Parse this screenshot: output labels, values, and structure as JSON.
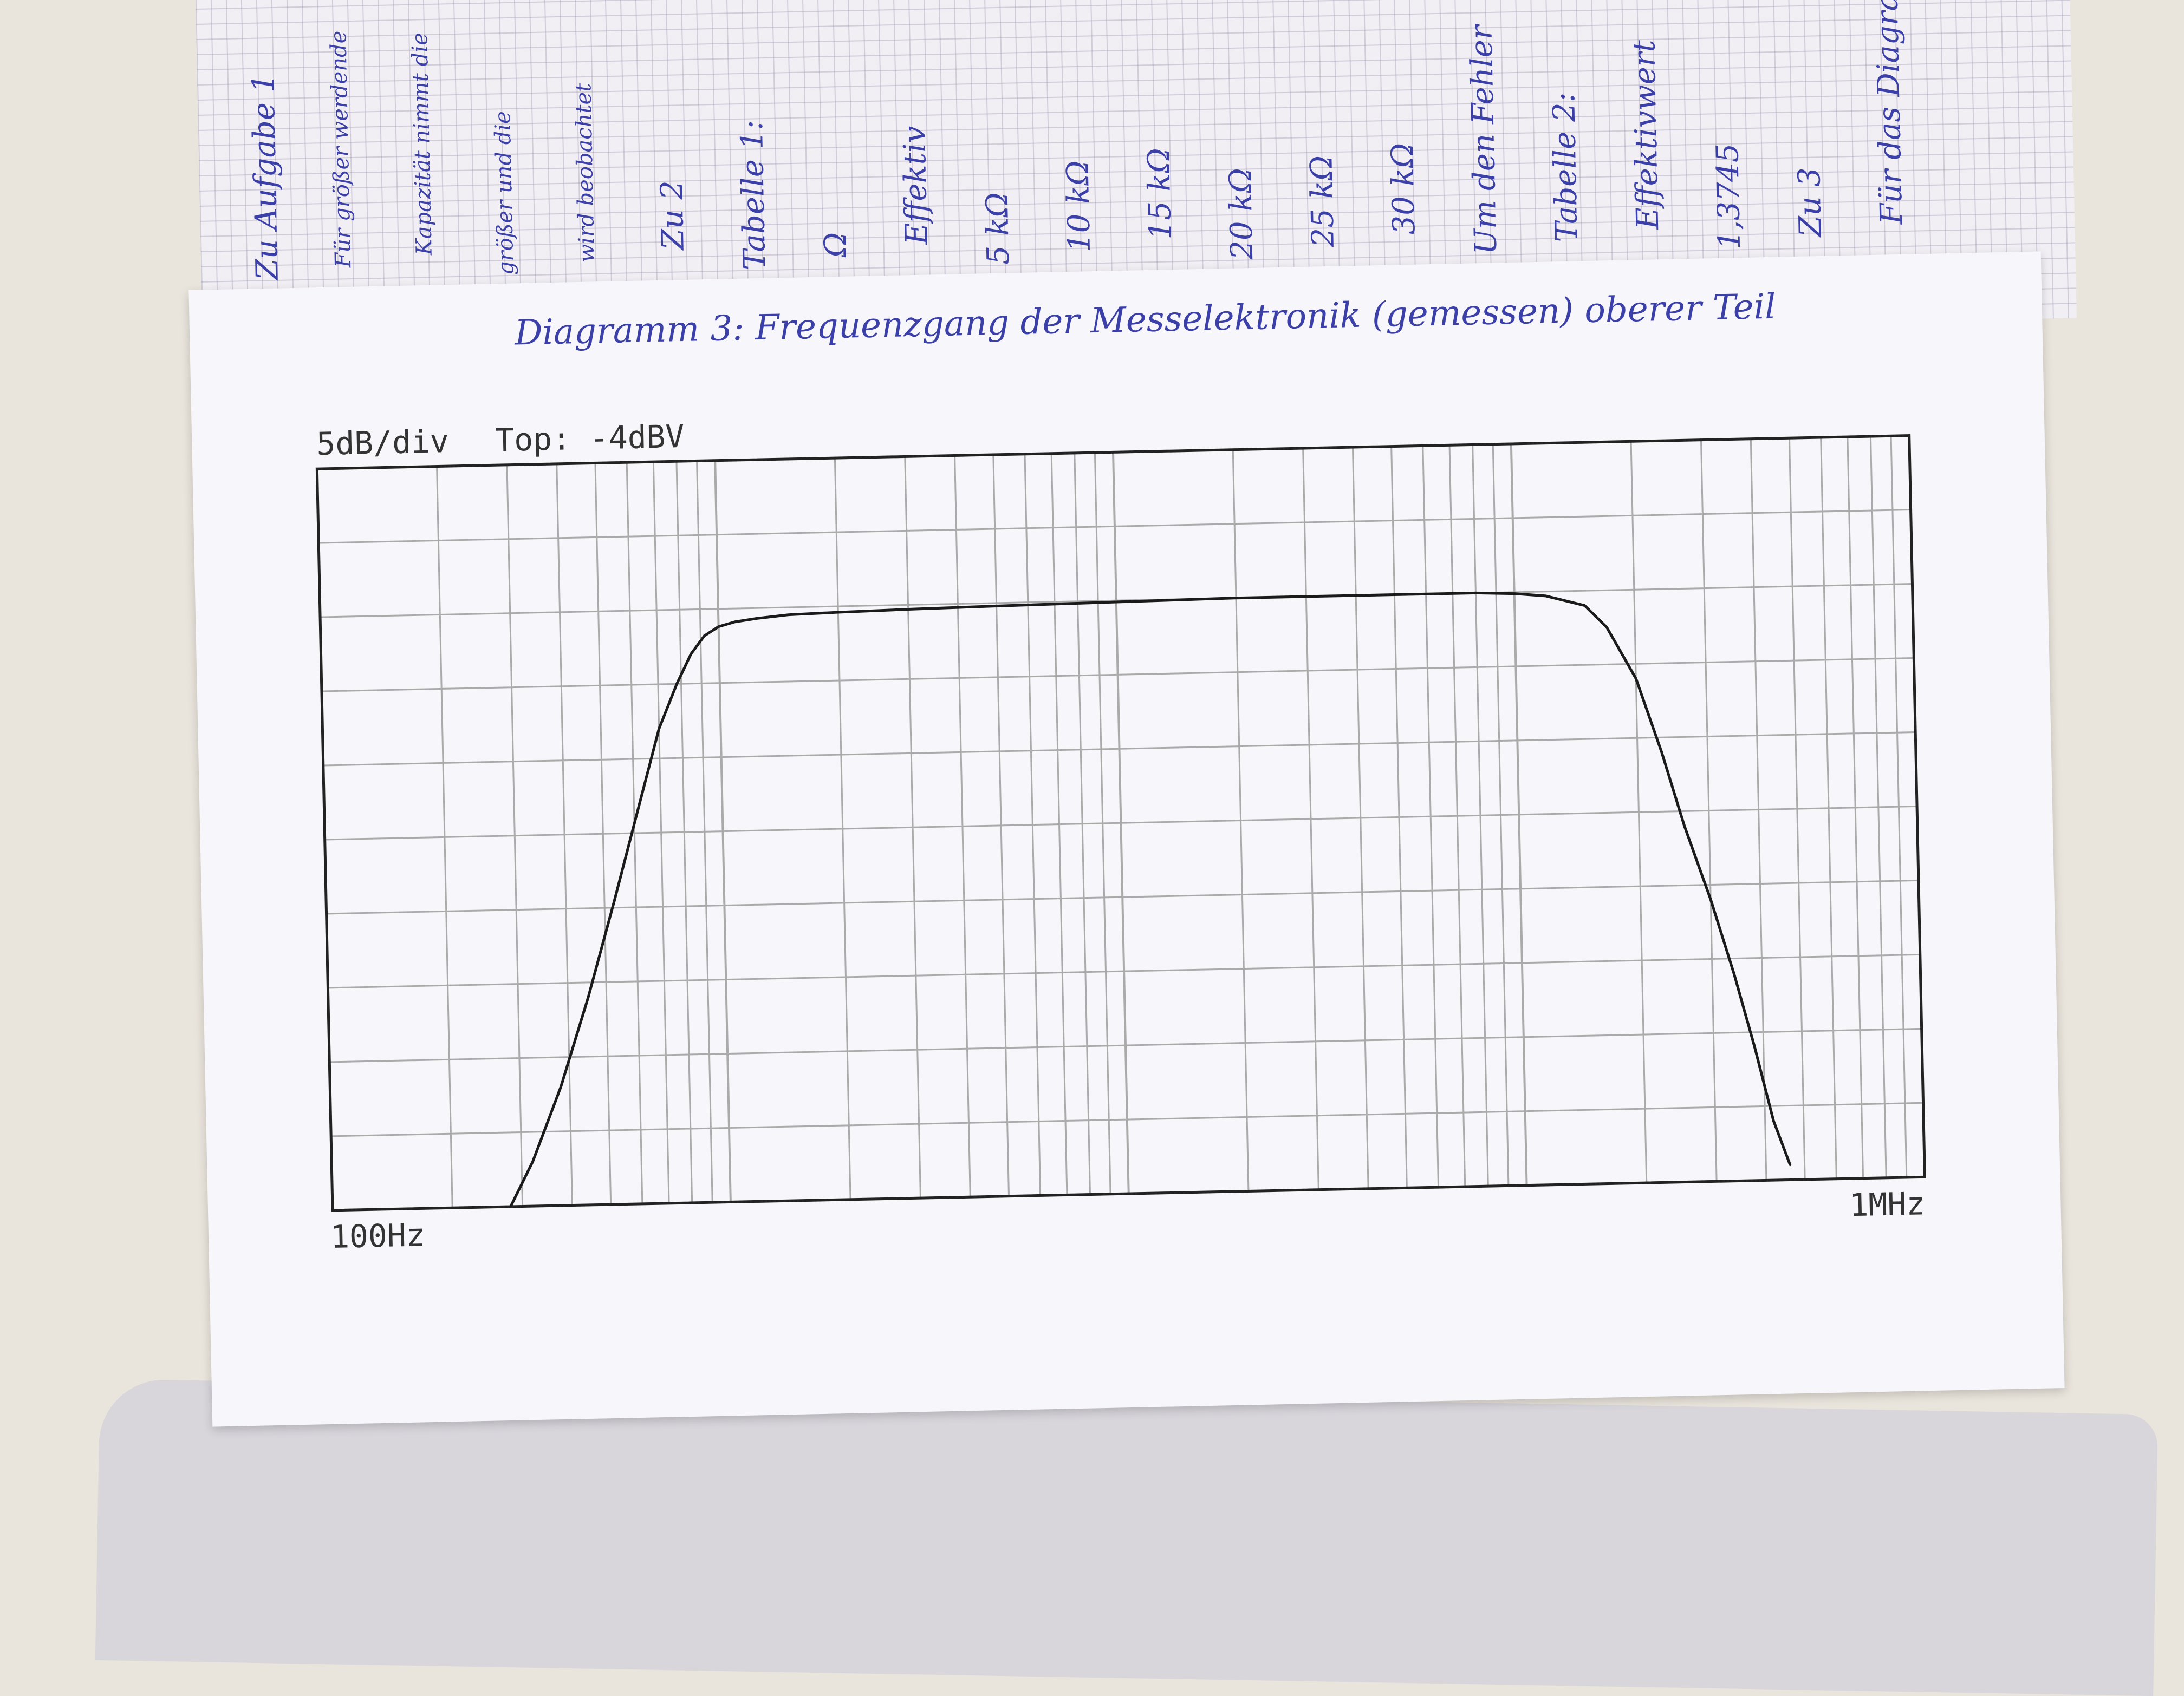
{
  "notes": {
    "lines": [
      "Zu Aufgabe 1",
      "Für größer werdende",
      "Kapazität nimmt die",
      "größer und die",
      "wird beobachtet",
      "Zu 2",
      "Tabelle 1:",
      "Ω",
      "Effektiv",
      "5 kΩ",
      "10 kΩ",
      "15 kΩ",
      "20 kΩ",
      "25 kΩ",
      "30 kΩ",
      "Um den Fehler",
      "Tabelle 2:",
      "Effektivwert",
      "1,3745",
      "Zu 3",
      "Für das Diagramm"
    ]
  },
  "sheet": {
    "title": "Diagramm 3: Frequenzgang der Messelektronik (gemessen) oberer Teil"
  },
  "chart_data": {
    "type": "line",
    "title": "",
    "scale_label": "5dB/div",
    "top_label": "Top: -4dBV",
    "x_start_label": "100Hz",
    "x_end_label": "1MHz",
    "xlabel": "",
    "ylabel": "",
    "x_scale": "log",
    "xlim": [
      100,
      1000000
    ],
    "ylim": [
      -54,
      -4
    ],
    "y_unit": "dBV",
    "grid": true,
    "colors": {
      "line": "#1a1a1a",
      "grid": "#aaaaaa",
      "frame": "#222222"
    },
    "series": [
      {
        "name": "",
        "x": [
          280,
          320,
          380,
          450,
          530,
          620,
          700,
          780,
          850,
          920,
          1000,
          1100,
          1250,
          1500,
          2000,
          3000,
          5000,
          10000,
          20000,
          50000,
          80000,
          100000,
          120000,
          150000,
          170000,
          200000,
          230000,
          260000,
          300000,
          340000,
          380000,
          420000,
          460000
        ],
        "y": [
          -54,
          -51,
          -46,
          -40,
          -33.5,
          -27,
          -22,
          -19,
          -17,
          -15.8,
          -15.2,
          -14.9,
          -14.7,
          -14.5,
          -14.4,
          -14.3,
          -14.2,
          -14.1,
          -14.0,
          -14.0,
          -14.0,
          -14.1,
          -14.3,
          -15,
          -16.5,
          -20,
          -25,
          -30,
          -35,
          -40,
          -45,
          -50,
          -53
        ]
      }
    ]
  }
}
